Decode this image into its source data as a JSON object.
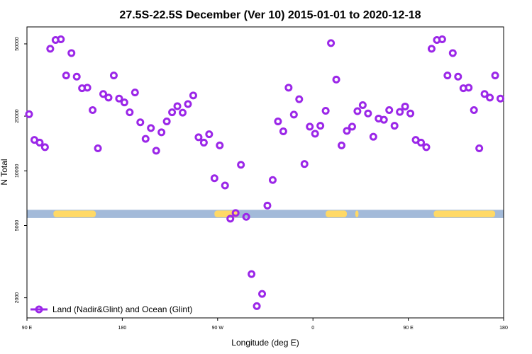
{
  "chart_data": {
    "type": "scatter",
    "title": "27.5S-22.5S December (Ver 10)   2015-01-01 to 2020-12-18",
    "xlabel": "Longitude (deg E)",
    "ylabel": "N Total",
    "x_ticks": [
      {
        "value": 90,
        "label": "90 E"
      },
      {
        "value": 180,
        "label": "180"
      },
      {
        "value": 270,
        "label": "90 W"
      },
      {
        "value": 360,
        "label": "0"
      },
      {
        "value": 450,
        "label": "90 E"
      },
      {
        "value": 540,
        "label": "180"
      }
    ],
    "y_ticks": [
      {
        "value": 2000,
        "label": "2000"
      },
      {
        "value": 5000,
        "label": "5000"
      },
      {
        "value": 10000,
        "label": "10000"
      },
      {
        "value": 20000,
        "label": "20000"
      },
      {
        "value": 50000,
        "label": "50000"
      }
    ],
    "xlim": [
      90,
      540
    ],
    "ylim": [
      1550,
      62000
    ],
    "y_scale": "log",
    "grid": false,
    "legend_position": "bottom-left",
    "colors": {
      "series": "#9B27E8",
      "ocean_band": "#A3BAD9",
      "land_band": "#FFD966"
    },
    "surface_band": {
      "y_range": [
        5500,
        6100
      ],
      "land_segments": [
        [
          115,
          155
        ],
        [
          267,
          290
        ],
        [
          372,
          392
        ],
        [
          400,
          403
        ],
        [
          474,
          532
        ]
      ]
    },
    "series": [
      {
        "name": "Land (Nadir&Glint) and Ocean (Glint)",
        "points": [
          {
            "x": 92,
            "y": 20500
          },
          {
            "x": 97,
            "y": 14800
          },
          {
            "x": 102,
            "y": 14300
          },
          {
            "x": 107,
            "y": 13500
          },
          {
            "x": 112,
            "y": 47000
          },
          {
            "x": 117,
            "y": 52500
          },
          {
            "x": 122,
            "y": 53000
          },
          {
            "x": 127,
            "y": 33500
          },
          {
            "x": 132,
            "y": 44500
          },
          {
            "x": 137,
            "y": 33000
          },
          {
            "x": 142,
            "y": 28500
          },
          {
            "x": 147,
            "y": 28700
          },
          {
            "x": 152,
            "y": 21600
          },
          {
            "x": 157,
            "y": 13300
          },
          {
            "x": 162,
            "y": 26500
          },
          {
            "x": 167,
            "y": 25300
          },
          {
            "x": 172,
            "y": 33500
          },
          {
            "x": 177,
            "y": 25000
          },
          {
            "x": 182,
            "y": 23800
          },
          {
            "x": 187,
            "y": 21000
          },
          {
            "x": 192,
            "y": 27000
          },
          {
            "x": 197,
            "y": 18500
          },
          {
            "x": 202,
            "y": 15000
          },
          {
            "x": 207,
            "y": 17200
          },
          {
            "x": 212,
            "y": 12900
          },
          {
            "x": 217,
            "y": 16300
          },
          {
            "x": 222,
            "y": 18700
          },
          {
            "x": 227,
            "y": 21000
          },
          {
            "x": 232,
            "y": 22700
          },
          {
            "x": 237,
            "y": 20900
          },
          {
            "x": 242,
            "y": 23300
          },
          {
            "x": 247,
            "y": 26000
          },
          {
            "x": 252,
            "y": 15300
          },
          {
            "x": 257,
            "y": 14300
          },
          {
            "x": 262,
            "y": 15900
          },
          {
            "x": 267,
            "y": 9100
          },
          {
            "x": 272,
            "y": 13800
          },
          {
            "x": 277,
            "y": 8300
          },
          {
            "x": 282,
            "y": 5450
          },
          {
            "x": 287,
            "y": 5860
          },
          {
            "x": 292,
            "y": 10800
          },
          {
            "x": 297,
            "y": 5580
          },
          {
            "x": 302,
            "y": 2700
          },
          {
            "x": 307,
            "y": 1800
          },
          {
            "x": 312,
            "y": 2100
          },
          {
            "x": 317,
            "y": 6440
          },
          {
            "x": 322,
            "y": 8900
          },
          {
            "x": 327,
            "y": 18700
          },
          {
            "x": 332,
            "y": 16500
          },
          {
            "x": 337,
            "y": 28700
          },
          {
            "x": 342,
            "y": 20400
          },
          {
            "x": 347,
            "y": 24800
          },
          {
            "x": 352,
            "y": 10900
          },
          {
            "x": 357,
            "y": 17500
          },
          {
            "x": 362,
            "y": 16000
          },
          {
            "x": 367,
            "y": 17700
          },
          {
            "x": 372,
            "y": 21400
          },
          {
            "x": 377,
            "y": 50500
          },
          {
            "x": 382,
            "y": 31800
          },
          {
            "x": 387,
            "y": 13800
          },
          {
            "x": 392,
            "y": 16600
          },
          {
            "x": 397,
            "y": 17500
          },
          {
            "x": 402,
            "y": 21300
          },
          {
            "x": 407,
            "y": 23000
          },
          {
            "x": 412,
            "y": 20700
          },
          {
            "x": 417,
            "y": 15400
          },
          {
            "x": 422,
            "y": 19400
          },
          {
            "x": 427,
            "y": 19100
          },
          {
            "x": 432,
            "y": 21600
          },
          {
            "x": 437,
            "y": 17700
          },
          {
            "x": 442,
            "y": 21100
          },
          {
            "x": 447,
            "y": 22600
          },
          {
            "x": 452,
            "y": 20700
          },
          {
            "x": 457,
            "y": 14800
          },
          {
            "x": 462,
            "y": 14300
          },
          {
            "x": 467,
            "y": 13500
          },
          {
            "x": 472,
            "y": 47000
          },
          {
            "x": 477,
            "y": 52500
          },
          {
            "x": 482,
            "y": 53000
          },
          {
            "x": 487,
            "y": 33500
          },
          {
            "x": 492,
            "y": 44500
          },
          {
            "x": 497,
            "y": 33000
          },
          {
            "x": 502,
            "y": 28500
          },
          {
            "x": 507,
            "y": 28700
          },
          {
            "x": 512,
            "y": 21600
          },
          {
            "x": 517,
            "y": 13300
          },
          {
            "x": 522,
            "y": 26500
          },
          {
            "x": 527,
            "y": 25300
          },
          {
            "x": 532,
            "y": 33500
          },
          {
            "x": 537,
            "y": 25000
          }
        ]
      }
    ]
  }
}
